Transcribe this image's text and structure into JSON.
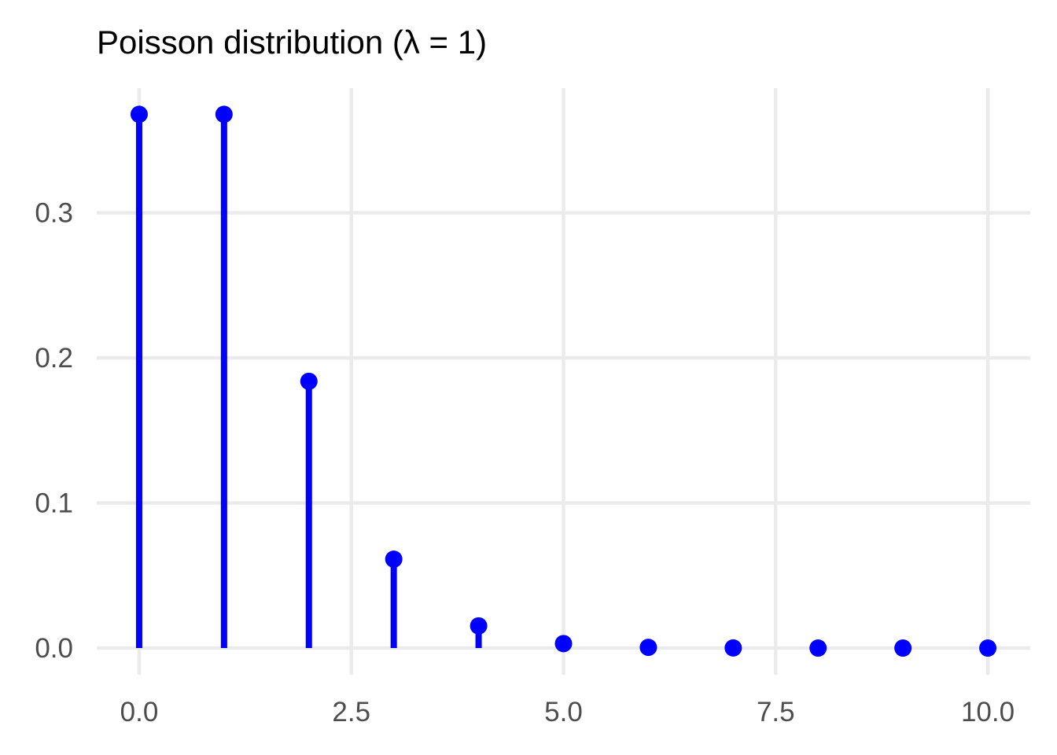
{
  "chart_data": {
    "type": "lollipop",
    "title": "Poisson distribution (λ = 1)",
    "xlabel": "",
    "ylabel": "",
    "x": [
      0,
      1,
      2,
      3,
      4,
      5,
      6,
      7,
      8,
      9,
      10
    ],
    "y": [
      0.3679,
      0.3679,
      0.1839,
      0.0613,
      0.0153,
      0.0031,
      0.0005,
      0.0001,
      0.0,
      0.0,
      0.0
    ],
    "xlim": [
      -0.5,
      10.5
    ],
    "ylim": [
      -0.0184,
      0.386
    ],
    "x_ticks": [
      0,
      2.5,
      5,
      7.5,
      10
    ],
    "x_tick_labels": [
      "0.0",
      "2.5",
      "5.0",
      "7.5",
      "10.0"
    ],
    "y_ticks": [
      0,
      0.1,
      0.2,
      0.3
    ],
    "y_tick_labels": [
      "0.0",
      "0.1",
      "0.2",
      "0.3"
    ],
    "grid": true,
    "legend": "none",
    "color": "#0000ff",
    "grid_color": "#ebebeb"
  }
}
